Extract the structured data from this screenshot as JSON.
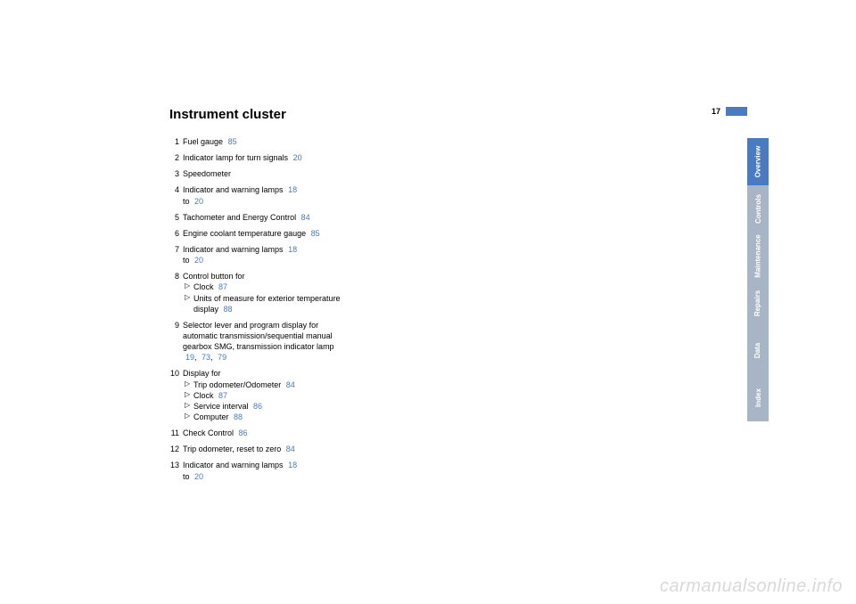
{
  "page_number": "17",
  "title": "Instrument cluster",
  "link_color": "#4a7ab5",
  "active_tab_color": "#4a7abf",
  "inactive_tab_color": "#a8b5c7",
  "items": [
    {
      "n": "1",
      "text": "Fuel gauge",
      "refs": [
        "85"
      ]
    },
    {
      "n": "2",
      "text": "Indicator lamp for turn signals",
      "refs": [
        "20"
      ]
    },
    {
      "n": "3",
      "text": "Speedometer",
      "refs": []
    },
    {
      "n": "4",
      "text": "Indicator and warning lamps",
      "refs": [
        "18"
      ],
      "trail": "to",
      "refs2": [
        "20"
      ]
    },
    {
      "n": "5",
      "text": "Tachometer and Energy Control",
      "refs": [
        "84"
      ]
    },
    {
      "n": "6",
      "text": "Engine coolant temperature gauge",
      "refs": [
        "85"
      ]
    },
    {
      "n": "7",
      "text": "Indicator and warning lamps",
      "refs": [
        "18"
      ],
      "trail": "to",
      "refs2": [
        "20"
      ]
    },
    {
      "n": "8",
      "text": "Control button for",
      "subs": [
        {
          "t": "Clock",
          "refs": [
            "87"
          ]
        },
        {
          "t": "Units of measure for exterior temperature display",
          "refs": [
            "88"
          ]
        }
      ]
    },
    {
      "n": "9",
      "text": "Selector lever and program display for automatic transmission/sequential manual gearbox SMG, transmission indicator lamp",
      "refs": [
        "19",
        "73",
        "79"
      ]
    },
    {
      "n": "10",
      "text": "Display for",
      "subs": [
        {
          "t": "Trip odometer/Odometer",
          "refs": [
            "84"
          ]
        },
        {
          "t": "Clock",
          "refs": [
            "87"
          ]
        },
        {
          "t": "Service interval",
          "refs": [
            "86"
          ]
        },
        {
          "t": "Computer",
          "refs": [
            "88"
          ]
        }
      ]
    },
    {
      "n": "11",
      "text": "Check Control",
      "refs": [
        "86"
      ]
    },
    {
      "n": "12",
      "text": "Trip odometer, reset to zero",
      "refs": [
        "84"
      ]
    },
    {
      "n": "13",
      "text": "Indicator and warning lamps",
      "refs": [
        "18"
      ],
      "trail": "to",
      "refs2": [
        "20"
      ]
    }
  ],
  "tabs": [
    {
      "label": "Overview",
      "active": true
    },
    {
      "label": "Controls",
      "active": false
    },
    {
      "label": "Maintenance",
      "active": false
    },
    {
      "label": "Repairs",
      "active": false
    },
    {
      "label": "Data",
      "active": false
    },
    {
      "label": "Index",
      "active": false
    }
  ],
  "watermark": "carmanualsonline.info"
}
